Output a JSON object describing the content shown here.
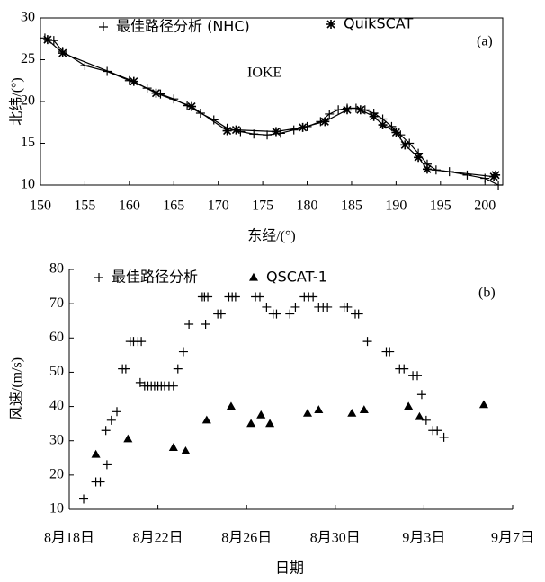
{
  "chart_data": [
    {
      "type": "line",
      "annotations": [
        "(a)",
        "IOKE"
      ],
      "x_label": "东经/(°)",
      "y_label": "北纬/(°)",
      "xlim": [
        150,
        202
      ],
      "ylim": [
        10,
        30
      ],
      "xticks": [
        150,
        155,
        160,
        165,
        170,
        175,
        180,
        185,
        190,
        195,
        200
      ],
      "yticks": [
        10,
        15,
        20,
        25,
        30
      ],
      "legend": "top-left",
      "frame": true,
      "series": [
        {
          "name": "最佳路径分析 (NHC)",
          "color": "#000000",
          "marker": "plus",
          "x": [
            150.5,
            151.5,
            152.5,
            155,
            157.5,
            160,
            162,
            163.5,
            165,
            166.5,
            168,
            169.5,
            171,
            172.5,
            174,
            175.5,
            177,
            178.5,
            180,
            181.5,
            182.5,
            183.5,
            184.5,
            185.5,
            186.5,
            187.5,
            188.5,
            189.5,
            190.5,
            191.5,
            192.5,
            193.5,
            194.5,
            196,
            198,
            200,
            201.5
          ],
          "values": [
            27.6,
            27.3,
            26,
            24.3,
            23.6,
            22.5,
            21.6,
            20.9,
            20.3,
            19.5,
            18.6,
            17.8,
            16.8,
            16.4,
            16.1,
            16.0,
            16.2,
            16.6,
            17.0,
            17.6,
            18.5,
            19.0,
            19.2,
            19.2,
            19.0,
            18.6,
            17.9,
            17.0,
            16.0,
            15.0,
            13.8,
            12.5,
            11.8,
            11.6,
            11.2,
            10.8,
            10.0
          ]
        },
        {
          "name": "QuikSCAT",
          "color": "#000000",
          "marker": "star",
          "x": [
            150.8,
            152.5,
            160.5,
            163,
            167,
            171,
            172,
            176.5,
            179.5,
            182,
            184.5,
            186,
            187.5,
            188.5,
            190,
            191,
            192.5,
            193.5,
            201,
            201.2
          ],
          "values": [
            27.4,
            25.8,
            22.4,
            21.0,
            19.4,
            16.5,
            16.6,
            16.4,
            16.9,
            17.6,
            19.0,
            19.0,
            18.2,
            17.2,
            16.3,
            14.8,
            13.3,
            11.9,
            11.0,
            11.2
          ]
        }
      ]
    },
    {
      "type": "scatter",
      "annotations": [
        "(b)"
      ],
      "x_label": "日期",
      "y_label": "风速/(m/s)",
      "xlim": [
        18,
        38
      ],
      "ylim": [
        10,
        80
      ],
      "xticks": [
        {
          "value": 18,
          "label": "8月18日"
        },
        {
          "value": 22,
          "label": "8月22日"
        },
        {
          "value": 26,
          "label": "8月26日"
        },
        {
          "value": 30,
          "label": "8月30日"
        },
        {
          "value": 34,
          "label": "9月3日"
        },
        {
          "value": 38,
          "label": "9月7日"
        }
      ],
      "yticks": [
        10,
        20,
        30,
        40,
        50,
        60,
        70,
        80
      ],
      "legend": "top-left",
      "frame": false,
      "series": [
        {
          "name": "最佳路径分析",
          "color": "#000000",
          "marker": "plus",
          "x": [
            18.65,
            19.2,
            19.4,
            19.65,
            19.7,
            19.9,
            20.15,
            20.4,
            20.55,
            20.75,
            20.9,
            21.1,
            21.25,
            21.2,
            21.4,
            21.55,
            21.7,
            21.85,
            22.0,
            22.15,
            22.3,
            22.5,
            22.7,
            22.9,
            23.15,
            23.4,
            24.0,
            24.1,
            24.15,
            24.25,
            24.7,
            24.85,
            25.2,
            25.35,
            25.5,
            26.4,
            26.6,
            26.9,
            27.2,
            27.35,
            27.95,
            28.2,
            28.6,
            28.8,
            29.0,
            29.25,
            29.45,
            29.65,
            30.4,
            30.55,
            30.9,
            31.05,
            31.45,
            32.3,
            32.45,
            32.9,
            33.1,
            33.5,
            33.7,
            33.9,
            34.1,
            34.4,
            34.6,
            34.9
          ],
          "values": [
            13,
            18,
            18,
            33,
            23,
            36,
            38.5,
            51,
            51,
            59,
            59,
            59,
            59,
            47,
            46,
            46,
            46,
            46,
            46,
            46,
            46,
            46,
            46,
            51,
            56,
            64,
            72,
            72,
            64,
            72,
            67,
            67,
            72,
            72,
            72,
            72,
            72,
            69,
            67,
            67,
            67,
            69,
            72,
            72,
            72,
            69,
            69,
            69,
            69,
            69,
            67,
            67,
            59,
            56,
            56,
            51,
            51,
            49,
            49,
            43.5,
            36,
            33,
            33,
            31
          ]
        },
        {
          "name": "QSCAT-1",
          "color": "#000000",
          "marker": "triangle",
          "x": [
            19.2,
            20.65,
            22.7,
            23.25,
            24.2,
            25.3,
            26.2,
            26.65,
            27.05,
            28.75,
            29.25,
            30.75,
            31.3,
            33.3,
            33.8,
            36.7
          ],
          "values": [
            26,
            30.5,
            28,
            27,
            36,
            40,
            35,
            37.5,
            35,
            38,
            39,
            38,
            39,
            40,
            37,
            40.5
          ]
        }
      ]
    }
  ]
}
